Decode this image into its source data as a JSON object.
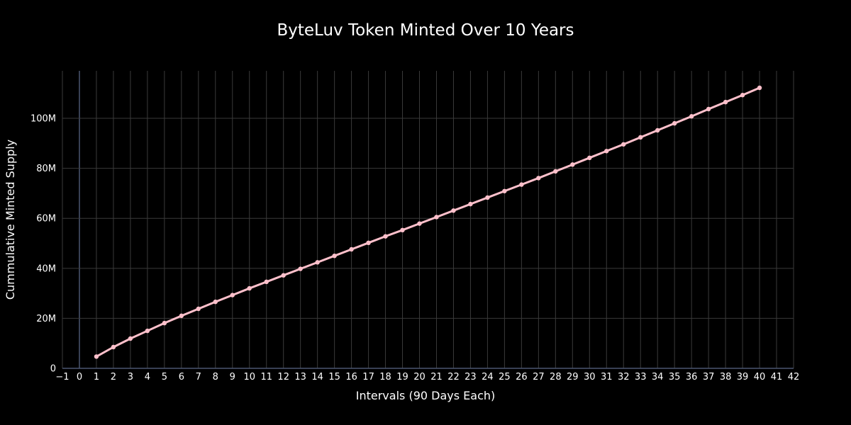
{
  "chart_data": {
    "type": "line",
    "title": "ByteLuv Token Minted Over 10 Years",
    "xlabel": "Intervals (90 Days Each)",
    "ylabel": "Cummulative Minted Supply",
    "xlim": [
      -1,
      42
    ],
    "ylim": [
      0,
      119000000
    ],
    "x_ticks": [
      "−1",
      "0",
      "1",
      "2",
      "3",
      "4",
      "5",
      "6",
      "7",
      "8",
      "9",
      "10",
      "11",
      "12",
      "13",
      "14",
      "15",
      "16",
      "17",
      "18",
      "19",
      "20",
      "21",
      "22",
      "23",
      "24",
      "25",
      "26",
      "27",
      "28",
      "29",
      "30",
      "31",
      "32",
      "33",
      "34",
      "35",
      "36",
      "37",
      "38",
      "39",
      "40",
      "41",
      "42"
    ],
    "y_ticks": [
      {
        "value": 0,
        "label": "0"
      },
      {
        "value": 20000000,
        "label": "20M"
      },
      {
        "value": 40000000,
        "label": "40M"
      },
      {
        "value": 60000000,
        "label": "60M"
      },
      {
        "value": 80000000,
        "label": "80M"
      },
      {
        "value": 100000000,
        "label": "100M"
      }
    ],
    "grid": true,
    "line_color": "#ffc0cb",
    "series": [
      {
        "x": [
          1,
          2,
          3,
          4,
          5,
          6,
          7,
          8,
          9,
          10,
          11,
          12,
          13,
          14,
          15,
          16,
          17,
          18,
          19,
          20,
          21,
          22,
          23,
          24,
          25,
          26,
          27,
          28,
          29,
          30,
          31,
          32,
          33,
          34,
          35,
          36,
          37,
          38,
          39,
          40
        ],
        "values": [
          4700000,
          8500000,
          11900000,
          15000000,
          18100000,
          21000000,
          23800000,
          26600000,
          29300000,
          32000000,
          34600000,
          37200000,
          39800000,
          42400000,
          45000000,
          47600000,
          50200000,
          52800000,
          55300000,
          57900000,
          60500000,
          63100000,
          65700000,
          68300000,
          70900000,
          73500000,
          76100000,
          78800000,
          81500000,
          84200000,
          86900000,
          89600000,
          92400000,
          95200000,
          98000000,
          100800000,
          103700000,
          106500000,
          109300000,
          112200000
        ]
      }
    ]
  }
}
